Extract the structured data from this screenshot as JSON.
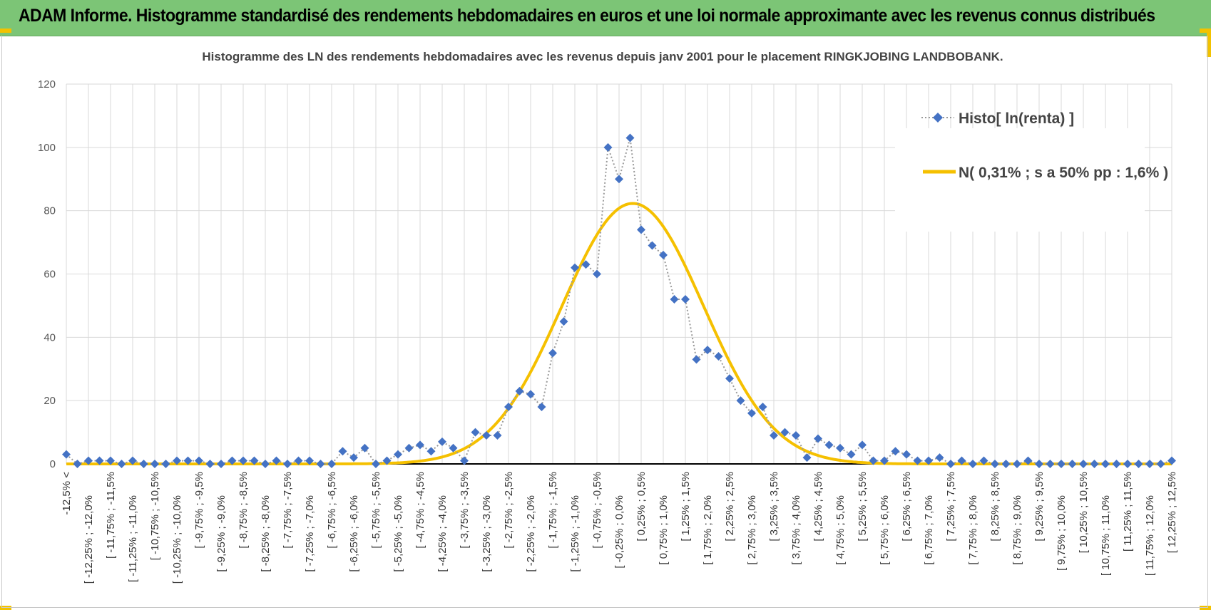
{
  "banner": {
    "title": "ADAM Informe. Histogramme standardisé des rendements hebdomadaires en euros et une loi normale approximante avec les revenus connus distribués"
  },
  "colors": {
    "banner": "#7cc576",
    "accent": "#f2c200",
    "series1": "#4472c4",
    "series2": "#f5c000",
    "grid": "#d9d9d9"
  },
  "chart_data": {
    "type": "line",
    "title": "Histogramme  des LN des rendements hebdomadaires avec les revenus depuis janv 2001 pour le placement RINGKJOBING  LANDBOBANK.",
    "ylim": [
      0,
      120
    ],
    "yticks": [
      "0",
      "20",
      "40",
      "60",
      "80",
      "100",
      "120"
    ],
    "grid": true,
    "legend_position": "top-right",
    "categories": [
      "-12,5% <",
      "[ -12,25% ; -12,0%",
      "[ -11,75% ; -11,5%",
      "[ -11,25% ; -11,0%",
      "[ -10,75% ; -10,5%",
      "[ -10,25% ; -10,0%",
      "[ -9,75% ; -9,5%",
      "[ -9,25% ; -9,0%",
      "[ -8,75% ; -8,5%",
      "[ -8,25% ; -8,0%",
      "[ -7,75% ; -7,5%",
      "[ -7,25% ; -7,0%",
      "[ -6,75% ; -6,5%",
      "[ -6,25% ; -6,0%",
      "[ -5,75% ; -5,5%",
      "[ -5,25% ; -5,0%",
      "[ -4,75% ; -4,5%",
      "[ -4,25% ; -4,0%",
      "[ -3,75% ; -3,5%",
      "[ -3,25% ; -3,0%",
      "[ -2,75% ; -2,5%",
      "[ -2,25% ; -2,0%",
      "[ -1,75% ; -1,5%",
      "[ -1,25% ; -1,0%",
      "[ -0,75% ; -0,5%",
      "[ -0,25% ; 0,0%",
      "[ 0,25% ; 0,5%",
      "[ 0,75% ; 1,0%",
      "[ 1,25% ; 1,5%",
      "[ 1,75% ; 2,0%",
      "[ 2,25% ; 2,5%",
      "[ 2,75% ; 3,0%",
      "[ 3,25% ; 3,5%",
      "[ 3,75% ; 4,0%",
      "[ 4,25% ; 4,5%",
      "[ 4,75% ; 5,0%",
      "[ 5,25% ; 5,5%",
      "[ 5,75% ; 6,0%",
      "[ 6,25% ; 6,5%",
      "[ 6,75% ; 7,0%",
      "[ 7,25% ; 7,5%",
      "[ 7,75% ; 8,0%",
      "[ 8,25% ; 8,5%",
      "[ 8,75% ; 9,0%",
      "[ 9,25% ; 9,5%",
      "[ 9,75% ; 10,0%",
      "[ 10,25% ; 10,5%",
      "[ 10,75% ; 11,0%",
      "[ 11,25% ; 11,5%",
      "[ 11,75% ; 12,0%",
      "[ 12,25% ; 12,5%"
    ],
    "series": [
      {
        "name": "Histo[ ln(renta) ]",
        "style": "dotted-line-diamond-markers",
        "x": [
          -12.5,
          -12.25,
          -12.0,
          -11.75,
          -11.5,
          -11.25,
          -11.0,
          -10.75,
          -10.5,
          -10.25,
          -10.0,
          -9.75,
          -9.5,
          -9.25,
          -9.0,
          -8.75,
          -8.5,
          -8.25,
          -8.0,
          -7.75,
          -7.5,
          -7.25,
          -7.0,
          -6.75,
          -6.5,
          -6.25,
          -6.0,
          -5.75,
          -5.5,
          -5.25,
          -5.0,
          -4.75,
          -4.5,
          -4.25,
          -4.0,
          -3.75,
          -3.5,
          -3.25,
          -3.0,
          -2.75,
          -2.5,
          -2.25,
          -2.0,
          -1.75,
          -1.5,
          -1.25,
          -1.0,
          -0.75,
          -0.5,
          -0.25,
          0.0,
          0.25,
          0.5,
          0.75,
          1.0,
          1.25,
          1.5,
          1.75,
          2.0,
          2.25,
          2.5,
          2.75,
          3.0,
          3.25,
          3.5,
          3.75,
          4.0,
          4.25,
          4.5,
          4.75,
          5.0,
          5.25,
          5.5,
          5.75,
          6.0,
          6.25,
          6.5,
          6.75,
          7.0,
          7.25,
          7.5,
          7.75,
          8.0,
          8.25,
          8.5,
          8.75,
          9.0,
          9.25,
          9.5,
          9.75,
          10.0,
          10.25,
          10.5,
          10.75,
          11.0,
          11.25,
          11.5,
          11.75,
          12.0,
          12.25,
          12.5
        ],
        "values": [
          3,
          0,
          1,
          1,
          1,
          0,
          1,
          0,
          0,
          0,
          1,
          1,
          1,
          0,
          0,
          1,
          1,
          1,
          0,
          1,
          0,
          1,
          1,
          0,
          0,
          4,
          2,
          5,
          0,
          1,
          3,
          5,
          6,
          4,
          7,
          5,
          1,
          10,
          9,
          9,
          18,
          23,
          22,
          18,
          35,
          45,
          62,
          63,
          60,
          100,
          90,
          103,
          74,
          69,
          66,
          52,
          52,
          33,
          36,
          34,
          27,
          20,
          16,
          18,
          9,
          10,
          9,
          2,
          8,
          6,
          5,
          3,
          6,
          1,
          1,
          4,
          3,
          1,
          1,
          2,
          0,
          1,
          0,
          1,
          0,
          0,
          0,
          1,
          0,
          0,
          0,
          0,
          0,
          0,
          0,
          0,
          0,
          0,
          0,
          0,
          1
        ]
      },
      {
        "name": "N( 0,31% ; s a 50% pp : 1,6% )",
        "style": "smooth-line",
        "distribution": {
          "mean": 0.31,
          "sd": 1.6,
          "peak": 82.3
        }
      }
    ]
  }
}
